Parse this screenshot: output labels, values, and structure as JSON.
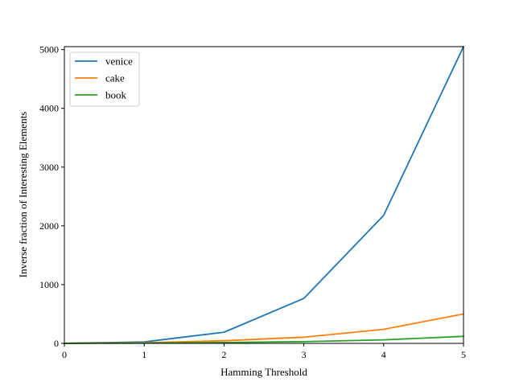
{
  "chart_data": {
    "type": "line",
    "xlabel": "Hamming Threshold",
    "ylabel": "Inverse fraction of Interesting Elements",
    "xlim": [
      0,
      5
    ],
    "ylim": [
      0,
      5050
    ],
    "x": [
      0,
      1,
      2,
      3,
      4,
      5
    ],
    "xticks": [
      "0",
      "1",
      "2",
      "3",
      "4",
      "5"
    ],
    "yticks": [
      0,
      1000,
      2000,
      3000,
      4000,
      5000
    ],
    "ytick_labels": [
      "0",
      "1000",
      "2000",
      "3000",
      "4000",
      "5000"
    ],
    "grid": false,
    "legend_position": "top-left",
    "series": [
      {
        "name": "venice",
        "color": "#1f77b4",
        "values": [
          1,
          25,
          190,
          765,
          2180,
          5050
        ]
      },
      {
        "name": "cake",
        "color": "#ff7f0e",
        "values": [
          1,
          12,
          45,
          105,
          240,
          500
        ]
      },
      {
        "name": "book",
        "color": "#2ca02c",
        "values": [
          1,
          5,
          15,
          30,
          60,
          120
        ]
      }
    ]
  }
}
